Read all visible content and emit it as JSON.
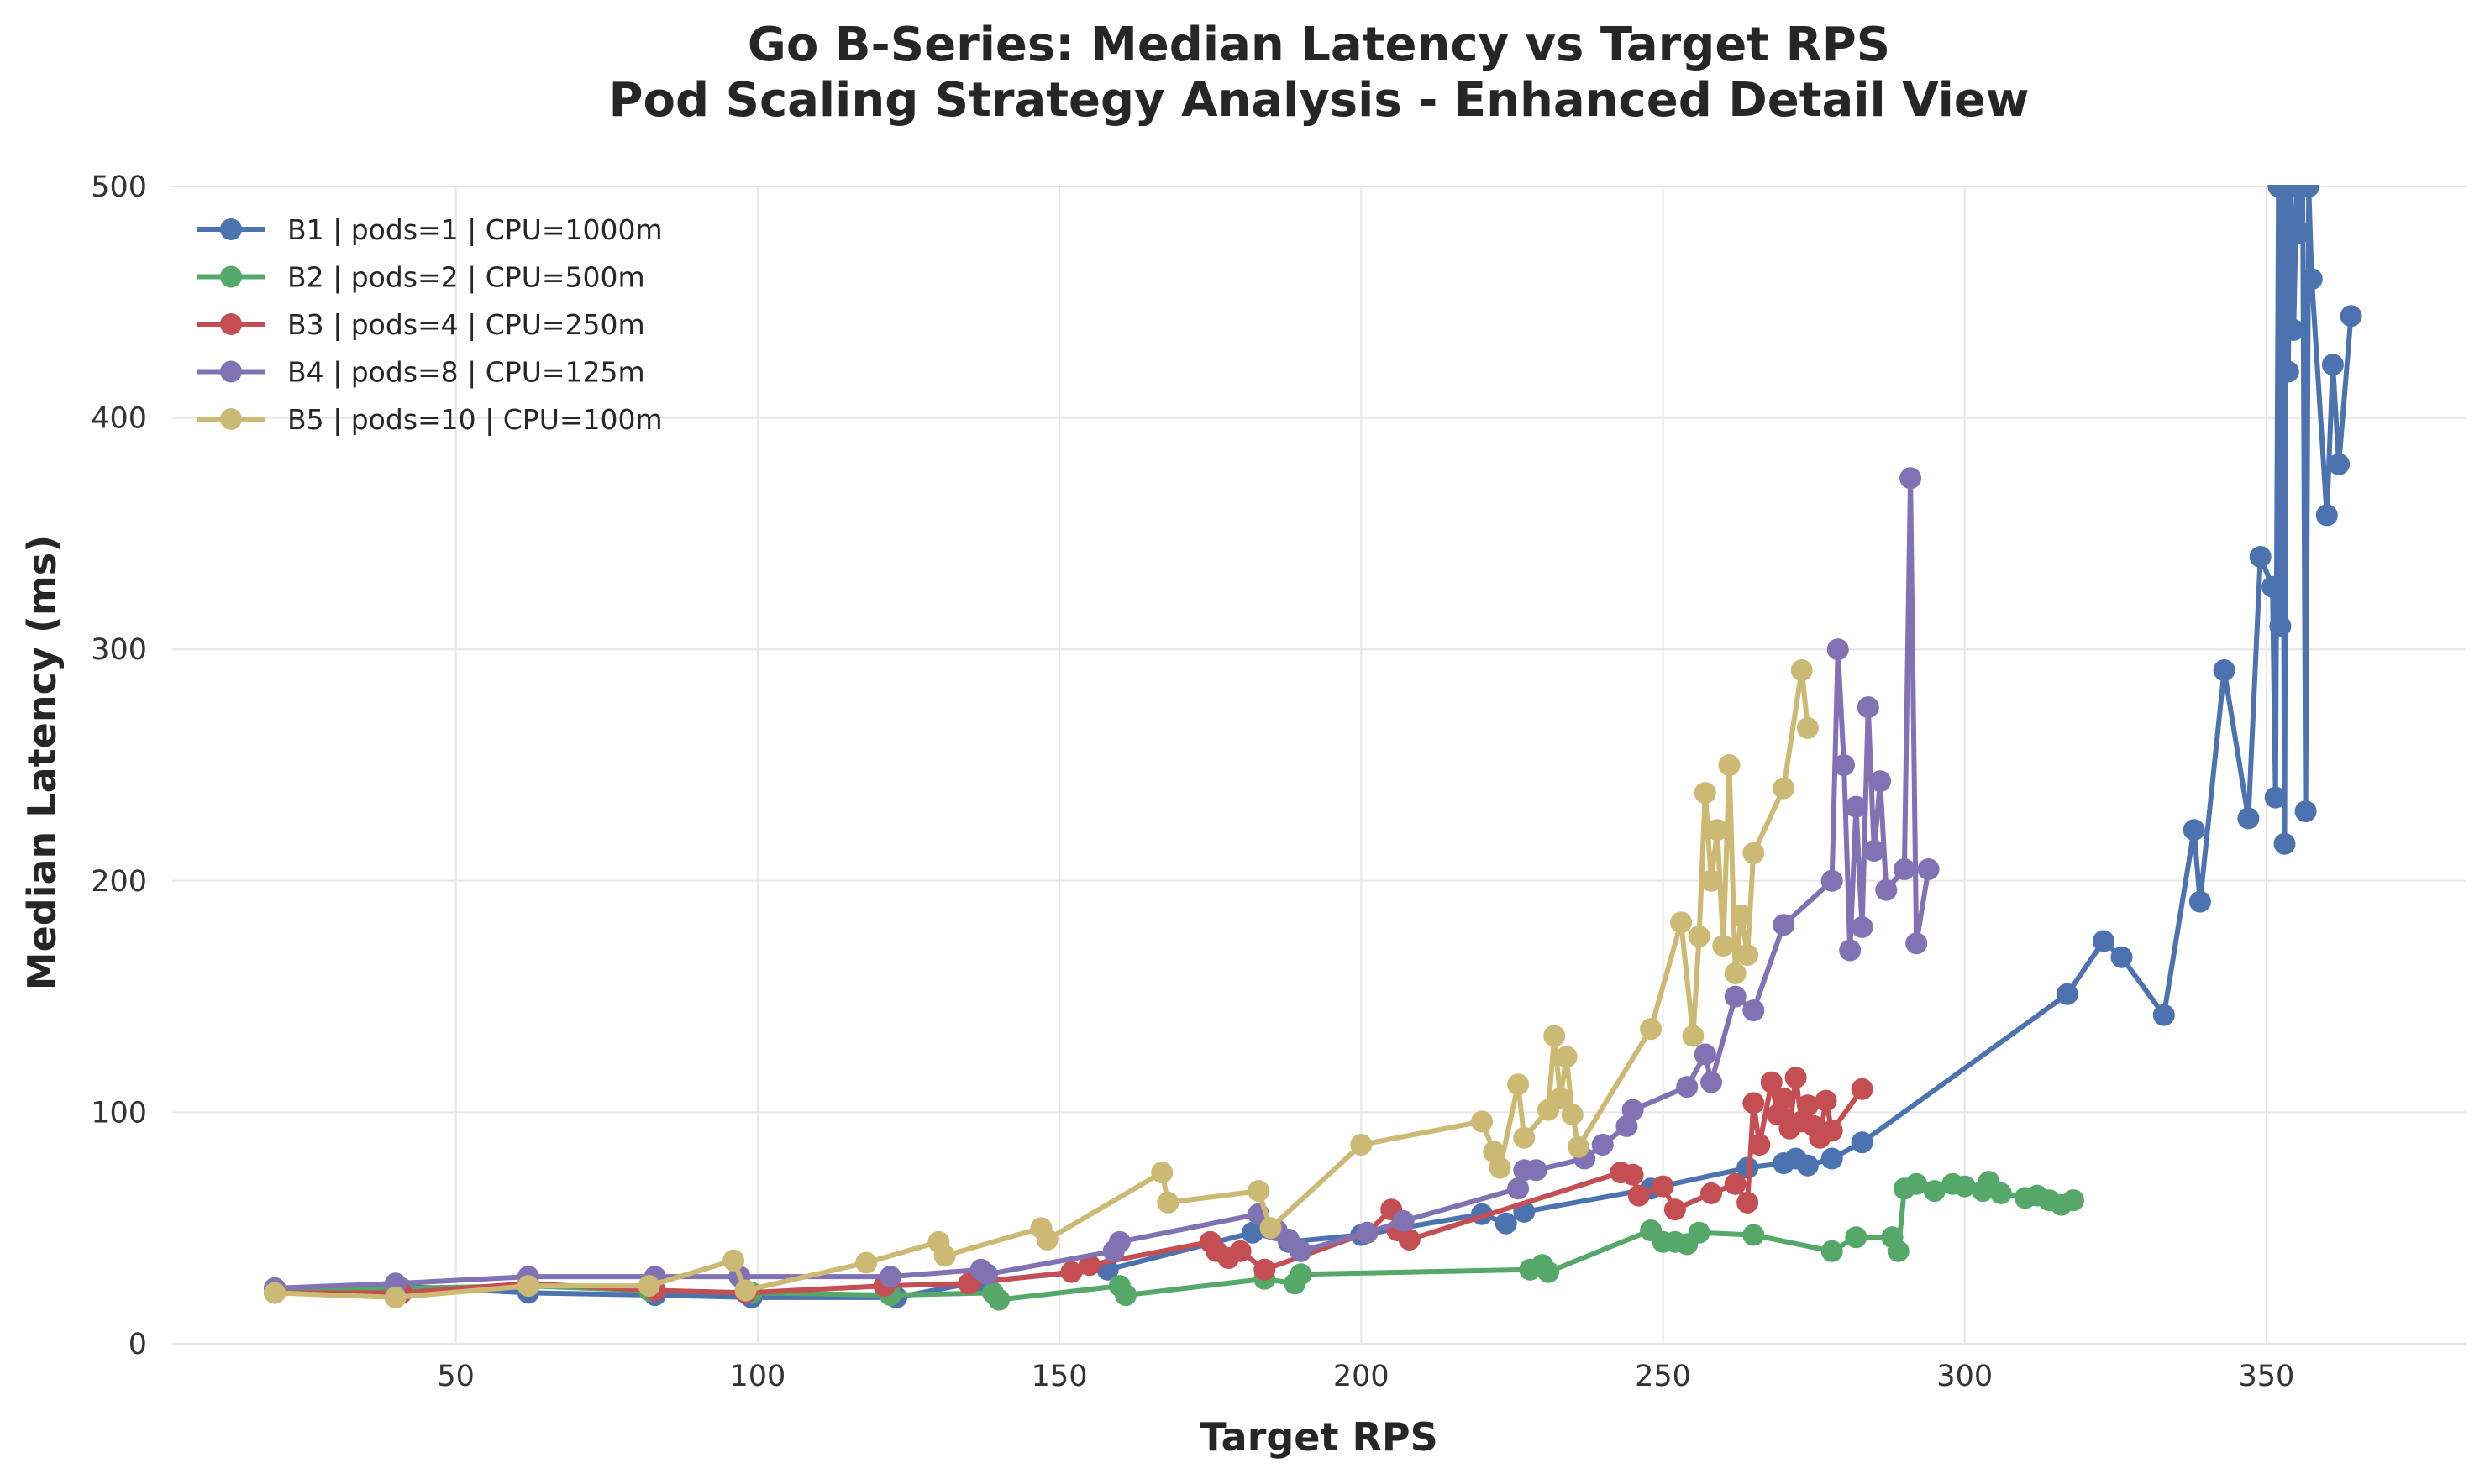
{
  "chart_data": {
    "type": "line",
    "title_line1": "Go B-Series: Median Latency vs Target RPS",
    "title_line2": "Pod Scaling Strategy Analysis - Enhanced Detail View",
    "xlabel": "Target RPS",
    "ylabel": "Median Latency (ms)",
    "xlim": [
      3,
      383
    ],
    "ylim": [
      0,
      500
    ],
    "xticks": [
      50,
      100,
      150,
      200,
      250,
      300,
      350
    ],
    "yticks": [
      0,
      100,
      200,
      300,
      400,
      500
    ],
    "grid": true,
    "legend_position": "top-left",
    "series": [
      {
        "name": "B1 | pods=1 | CPU=1000m",
        "color": "#4c72b0",
        "x": [
          20,
          40,
          62,
          83,
          99,
          123,
          137,
          158,
          182,
          188,
          200,
          220,
          224,
          227,
          248,
          264,
          270,
          272,
          274,
          278,
          283,
          317,
          323,
          326,
          333,
          338,
          339,
          343,
          347,
          349,
          351,
          351.5,
          352,
          352.3,
          352.6,
          353,
          353.3,
          353.6,
          354,
          354.5,
          355,
          355.5,
          356,
          356.5,
          357,
          357.5,
          360,
          361,
          362,
          364
        ],
        "y": [
          24,
          25,
          22,
          21,
          20,
          20,
          27,
          32,
          48,
          44,
          47,
          56,
          52,
          57,
          67,
          76,
          78,
          80,
          77,
          80,
          87,
          151,
          174,
          167,
          142,
          222,
          191,
          291,
          227,
          340,
          327,
          236,
          500,
          310,
          500,
          216,
          500,
          420,
          500,
          438,
          500,
          480,
          500,
          230,
          500,
          460,
          358,
          423,
          380,
          444
        ]
      },
      {
        "name": "B2 | pods=2 | CPU=500m",
        "color": "#55a868",
        "x": [
          20,
          41,
          62,
          82,
          99,
          122,
          139,
          140,
          160,
          161,
          184,
          189,
          190,
          228,
          230,
          231,
          248,
          250,
          252,
          254,
          256,
          265,
          278,
          282,
          288,
          289,
          290,
          292,
          295,
          298,
          300,
          303,
          304,
          306,
          310,
          312,
          314,
          316,
          318
        ],
        "y": [
          24,
          24,
          25,
          23,
          22,
          21,
          22,
          19,
          25,
          21,
          28,
          26,
          30,
          32,
          34,
          31,
          49,
          44,
          44,
          43,
          48,
          47,
          40,
          46,
          46,
          40,
          67,
          69,
          66,
          69,
          68,
          66,
          70,
          65,
          63,
          64,
          62,
          60,
          62
        ]
      },
      {
        "name": "B3 | pods=4 | CPU=250m",
        "color": "#c44e52",
        "x": [
          20,
          41,
          62,
          83,
          98,
          121,
          135,
          152,
          155,
          175,
          176,
          178,
          180,
          184,
          201,
          205,
          206,
          208,
          243,
          245,
          246,
          250,
          252,
          258,
          262,
          264,
          265,
          266,
          268,
          269,
          270,
          271,
          272,
          273,
          274,
          275,
          276,
          277,
          278,
          283
        ],
        "y": [
          22,
          22,
          26,
          23,
          22,
          25,
          26,
          31,
          34,
          44,
          40,
          37,
          40,
          32,
          48,
          58,
          49,
          45,
          74,
          73,
          64,
          68,
          58,
          65,
          69,
          61,
          104,
          86,
          113,
          99,
          106,
          93,
          115,
          96,
          103,
          94,
          89,
          105,
          92,
          110
        ]
      },
      {
        "name": "B4 | pods=8 | CPU=125m",
        "color": "#8172b3",
        "x": [
          20,
          40,
          62,
          83,
          97,
          122,
          137,
          138,
          159,
          160,
          183,
          186,
          188,
          190,
          201,
          207,
          226,
          227,
          229,
          237,
          240,
          244,
          245,
          254,
          257,
          258,
          262,
          265,
          270,
          278,
          279,
          280,
          281,
          282,
          283,
          284,
          285,
          286,
          287,
          290,
          291,
          292,
          294
        ],
        "y": [
          24,
          26,
          29,
          29,
          29,
          29,
          32,
          30,
          40,
          44,
          56,
          49,
          45,
          40,
          48,
          53,
          67,
          75,
          75,
          80,
          86,
          94,
          101,
          111,
          125,
          113,
          150,
          144,
          181,
          200,
          300,
          250,
          170,
          232,
          180,
          275,
          213,
          243,
          196,
          205,
          374,
          173,
          205
        ]
      },
      {
        "name": "B5 | pods=10 | CPU=100m",
        "color": "#ccb974",
        "x": [
          20,
          40,
          62,
          82,
          96,
          98,
          118,
          130,
          131,
          147,
          148,
          167,
          168,
          183,
          185,
          200,
          220,
          222,
          223,
          226,
          227,
          231,
          232,
          233,
          234,
          235,
          236,
          248,
          253,
          255,
          256,
          257,
          258,
          259,
          260,
          261,
          262,
          263,
          264,
          265,
          270,
          273,
          274
        ],
        "y": [
          22,
          20,
          25,
          25,
          36,
          23,
          35,
          44,
          38,
          50,
          45,
          74,
          61,
          66,
          50,
          86,
          96,
          83,
          76,
          112,
          89,
          101,
          133,
          106,
          124,
          99,
          85,
          136,
          182,
          133,
          176,
          238,
          200,
          222,
          172,
          250,
          160,
          185,
          168,
          212,
          240,
          291,
          266
        ]
      }
    ]
  }
}
